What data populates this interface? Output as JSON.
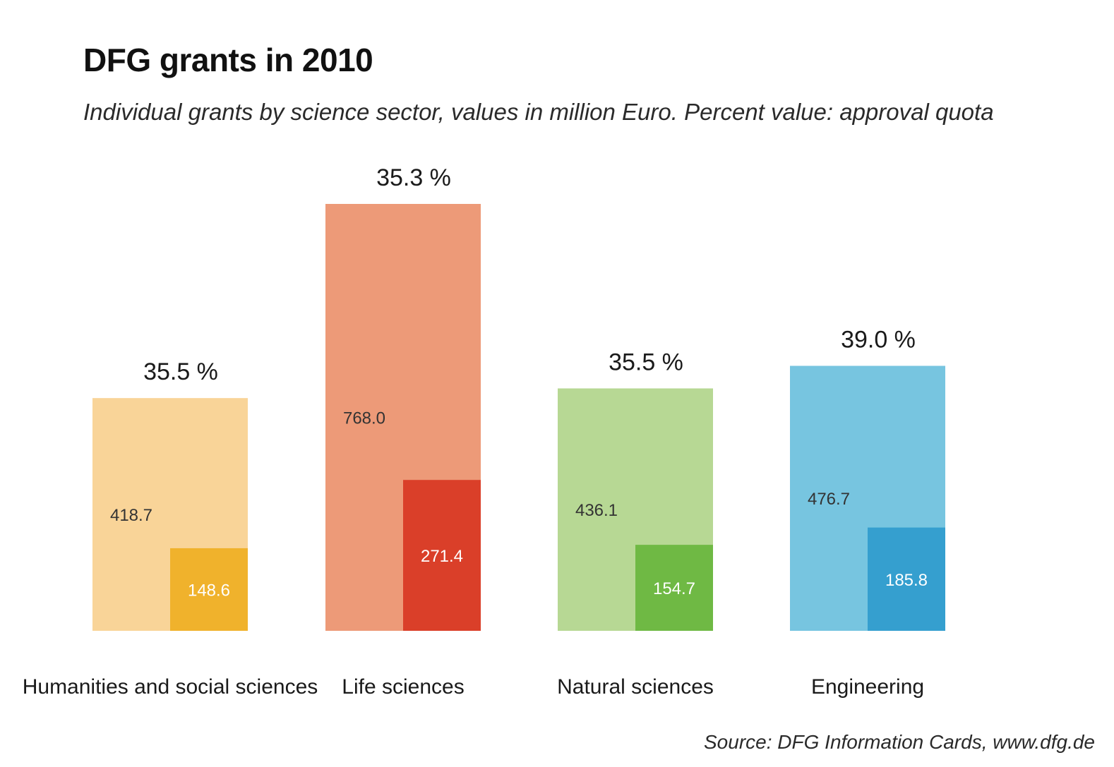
{
  "chart_data": {
    "type": "bar",
    "title": "DFG grants in 2010",
    "subtitle": "Individual grants by science sector, values in million Euro. Percent value: approval quota",
    "source": "Source: DFG Information Cards, www.dfg.de",
    "categories": [
      "Humanities and social sciences",
      "Life sciences",
      "Natural sciences",
      "Engineering"
    ],
    "series": [
      {
        "values": [
          418.7,
          768.0,
          436.1,
          476.7
        ],
        "labels": [
          "418.7",
          "768.0",
          "436.1",
          "476.7"
        ]
      },
      {
        "values": [
          148.6,
          271.4,
          154.7,
          185.8
        ],
        "labels": [
          "148.6",
          "271.4",
          "154.7",
          "185.8"
        ]
      }
    ],
    "approval_quota": [
      "35.5 %",
      "35.3 %",
      "35.5 %",
      "39.0 %"
    ],
    "colors": {
      "light": [
        "#f9d498",
        "#ed9a78",
        "#b7d894",
        "#77c5e0"
      ],
      "dark": [
        "#f0b22c",
        "#da3f29",
        "#6fb944",
        "#359fcf"
      ]
    }
  }
}
